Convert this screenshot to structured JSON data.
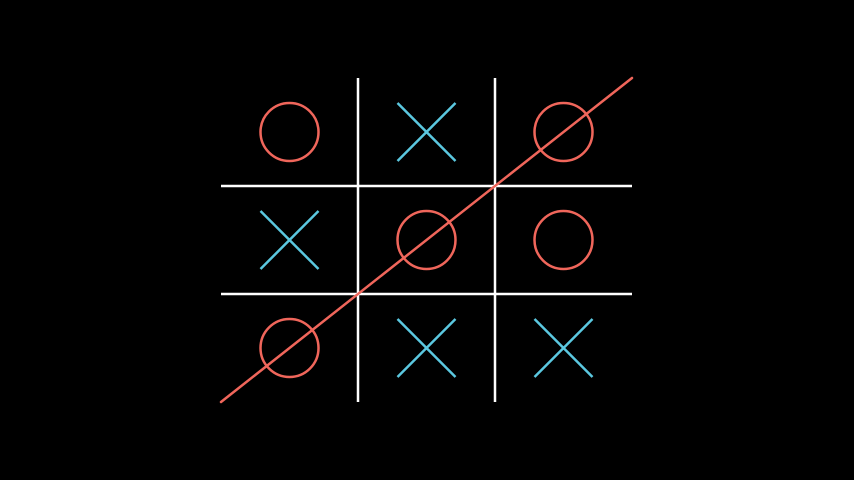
{
  "game": {
    "name": "tic-tac-toe",
    "board": [
      [
        "O",
        "X",
        "O"
      ],
      [
        "X",
        "O",
        "O"
      ],
      [
        "O",
        "X",
        "X"
      ]
    ],
    "winner": "O",
    "winning_line": {
      "from": {
        "row": 2,
        "col": 0
      },
      "to": {
        "row": 0,
        "col": 2
      },
      "direction": "anti-diagonal"
    }
  },
  "colors": {
    "background": "#000000",
    "grid": "#ffffff",
    "x_mark": "#5bc8e0",
    "o_mark": "#f0665b",
    "win_line": "#f0665b"
  },
  "icons": {
    "X": "cross-mark-icon",
    "O": "circle-mark-icon"
  }
}
